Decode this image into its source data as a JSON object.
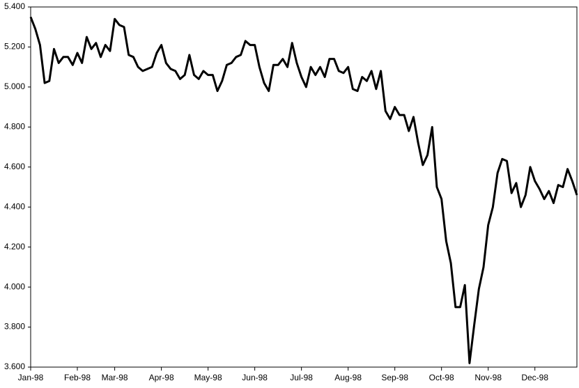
{
  "chart_data": {
    "type": "line",
    "categories": [
      "Jan-98",
      null,
      null,
      null,
      null,
      null,
      null,
      null,
      null,
      null,
      "Feb-98",
      null,
      null,
      null,
      null,
      null,
      null,
      null,
      "Mar-98",
      null,
      null,
      null,
      null,
      null,
      null,
      null,
      null,
      null,
      "Apr-98",
      null,
      null,
      null,
      null,
      null,
      null,
      null,
      null,
      null,
      "May-98",
      null,
      null,
      null,
      null,
      null,
      null,
      null,
      null,
      null,
      "Jun-98",
      null,
      null,
      null,
      null,
      null,
      null,
      null,
      null,
      null,
      "Jul-98",
      null,
      null,
      null,
      null,
      null,
      null,
      null,
      null,
      null,
      "Aug-98",
      null,
      null,
      null,
      null,
      null,
      null,
      null,
      null,
      null,
      "Sep-98",
      null,
      null,
      null,
      null,
      null,
      null,
      null,
      null,
      null,
      "Oct-98",
      null,
      null,
      null,
      null,
      null,
      null,
      null,
      null,
      null,
      "Nov-98",
      null,
      null,
      null,
      null,
      null,
      null,
      null,
      null,
      null,
      "Dec-98",
      null,
      null,
      null,
      null,
      null,
      null,
      null,
      null,
      null
    ],
    "values": [
      5.35,
      5.29,
      5.21,
      5.02,
      5.03,
      5.19,
      5.12,
      5.15,
      5.15,
      5.11,
      5.17,
      5.12,
      5.25,
      5.19,
      5.22,
      5.15,
      5.21,
      5.18,
      5.34,
      5.31,
      5.3,
      5.16,
      5.15,
      5.1,
      5.08,
      5.09,
      5.1,
      5.17,
      5.21,
      5.12,
      5.09,
      5.08,
      5.04,
      5.06,
      5.16,
      5.06,
      5.04,
      5.08,
      5.06,
      5.06,
      4.98,
      5.03,
      5.11,
      5.12,
      5.15,
      5.16,
      5.23,
      5.21,
      5.21,
      5.1,
      5.02,
      4.98,
      5.11,
      5.11,
      5.14,
      5.1,
      5.22,
      5.12,
      5.05,
      5.0,
      5.1,
      5.06,
      5.1,
      5.05,
      5.14,
      5.14,
      5.08,
      5.07,
      5.1,
      4.99,
      4.98,
      5.05,
      5.03,
      5.08,
      4.99,
      5.08,
      4.88,
      4.84,
      4.9,
      4.86,
      4.86,
      4.78,
      4.85,
      4.72,
      4.61,
      4.66,
      4.8,
      4.5,
      4.44,
      4.23,
      4.12,
      3.9,
      3.9,
      4.01,
      3.62,
      3.81,
      3.99,
      4.1,
      4.31,
      4.4,
      4.57,
      4.64,
      4.63,
      4.47,
      4.52,
      4.4,
      4.46,
      4.6,
      4.53,
      4.49,
      4.44,
      4.48,
      4.42,
      4.51,
      4.5,
      4.59,
      4.53,
      4.46
    ],
    "color": "#000000",
    "ylim": [
      3.6,
      5.4
    ],
    "yticks": [
      {
        "value": 3.6,
        "label": "3.600"
      },
      {
        "value": 3.8,
        "label": "3.800"
      },
      {
        "value": 4.0,
        "label": "4.000"
      },
      {
        "value": 4.2,
        "label": "4.200"
      },
      {
        "value": 4.4,
        "label": "4.400"
      },
      {
        "value": 4.6,
        "label": "4.600"
      },
      {
        "value": 4.8,
        "label": "4.800"
      },
      {
        "value": 5.0,
        "label": "5.000"
      },
      {
        "value": 5.2,
        "label": "5.200"
      },
      {
        "value": 5.4,
        "label": "5.400"
      }
    ],
    "grid": false
  }
}
